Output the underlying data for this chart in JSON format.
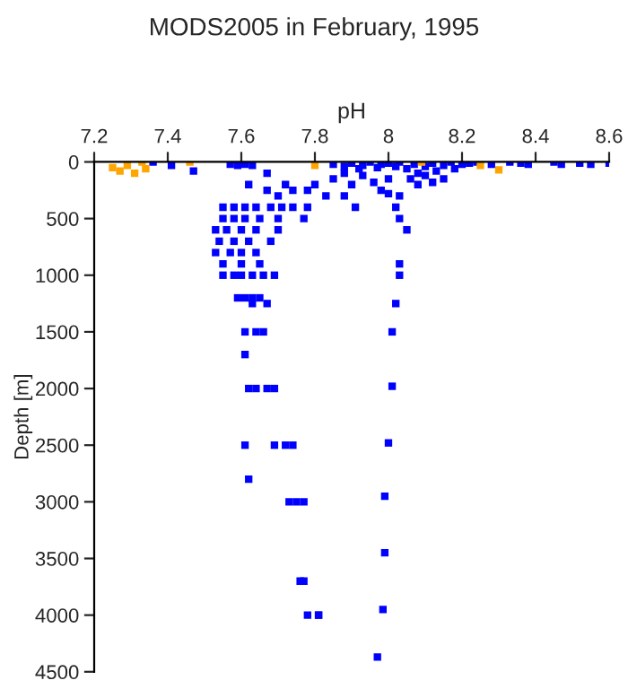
{
  "chart_data": {
    "type": "scatter",
    "title": "MODS2005 in February, 1995",
    "xlabel": "pH",
    "ylabel": "Depth [m]",
    "marker": "square",
    "grid": false,
    "legend": false,
    "xlim": [
      7.2,
      8.6
    ],
    "xticks": [
      7.2,
      7.4,
      7.6,
      7.8,
      8,
      8.2,
      8.4,
      8.6
    ],
    "ylim": [
      4500,
      0
    ],
    "yticks": [
      0,
      500,
      1000,
      1500,
      2000,
      2500,
      3000,
      3500,
      4000,
      4500
    ],
    "series": [
      {
        "color": "#0000ff",
        "x": [
          7.36,
          7.41,
          7.47,
          7.57,
          7.59,
          7.61,
          7.63,
          7.67,
          7.85,
          7.88,
          7.9,
          7.92,
          7.93,
          7.95,
          7.97,
          7.98,
          8.0,
          8.02,
          8.03,
          8.05,
          8.07,
          8.08,
          8.1,
          8.12,
          8.13,
          8.15,
          8.17,
          8.18,
          8.2,
          8.22,
          8.24,
          8.28,
          8.33,
          8.36,
          8.38,
          8.45,
          8.47,
          8.52,
          8.55,
          8.6,
          7.85,
          7.88,
          7.9,
          7.93,
          7.96,
          7.98,
          8.0,
          8.03,
          8.06,
          8.08,
          8.1,
          8.12,
          8.15,
          7.8,
          7.78,
          7.83,
          7.62,
          7.67,
          7.7,
          7.74,
          7.72,
          7.88,
          8.0,
          7.55,
          7.58,
          7.61,
          7.64,
          7.68,
          7.71,
          7.74,
          7.78,
          7.91,
          8.02,
          7.55,
          7.58,
          7.61,
          7.65,
          7.7,
          7.77,
          8.03,
          7.53,
          7.56,
          7.6,
          7.64,
          7.7,
          8.05,
          7.54,
          7.58,
          7.62,
          7.68,
          7.53,
          7.57,
          7.6,
          7.64,
          7.55,
          7.6,
          7.65,
          8.03,
          7.55,
          7.58,
          7.6,
          7.63,
          7.66,
          7.69,
          8.03,
          7.59,
          7.61,
          7.63,
          7.65,
          7.63,
          7.67,
          8.02,
          7.61,
          7.64,
          7.66,
          8.01,
          7.61,
          7.62,
          7.64,
          7.67,
          7.69,
          8.01,
          7.61,
          7.69,
          7.72,
          7.74,
          8.0,
          7.62,
          7.73,
          7.75,
          7.77,
          7.99,
          7.99,
          7.76,
          7.77,
          7.985,
          7.78,
          7.81,
          7.81,
          7.97
        ],
        "values": [
          0,
          30,
          80,
          20,
          30,
          20,
          30,
          100,
          20,
          40,
          10,
          60,
          30,
          0,
          50,
          20,
          10,
          40,
          0,
          60,
          20,
          100,
          40,
          10,
          80,
          30,
          0,
          60,
          20,
          10,
          0,
          20,
          0,
          10,
          20,
          0,
          20,
          10,
          20,
          10,
          150,
          100,
          200,
          120,
          180,
          250,
          150,
          300,
          150,
          200,
          120,
          180,
          150,
          200,
          250,
          300,
          200,
          250,
          300,
          250,
          200,
          300,
          280,
          400,
          400,
          400,
          400,
          400,
          400,
          400,
          400,
          400,
          400,
          500,
          500,
          500,
          500,
          500,
          500,
          500,
          600,
          600,
          600,
          600,
          600,
          600,
          700,
          700,
          700,
          700,
          800,
          800,
          800,
          800,
          900,
          900,
          900,
          900,
          1000,
          1000,
          1000,
          1000,
          1000,
          1000,
          1000,
          1200,
          1200,
          1200,
          1200,
          1250,
          1250,
          1250,
          1500,
          1500,
          1500,
          1500,
          1700,
          2000,
          2000,
          2000,
          2000,
          1980,
          2500,
          2500,
          2500,
          2500,
          2480,
          2800,
          3000,
          3000,
          3000,
          2950,
          3450,
          3700,
          3700,
          3950,
          4000,
          4000,
          4000,
          4370
        ]
      },
      {
        "color": "#ffa500",
        "x": [
          7.25,
          7.27,
          7.29,
          7.31,
          7.33,
          7.34,
          7.46,
          7.8,
          8.09,
          8.25,
          8.3
        ],
        "values": [
          50,
          80,
          30,
          100,
          0,
          60,
          0,
          30,
          0,
          30,
          70
        ]
      }
    ]
  }
}
